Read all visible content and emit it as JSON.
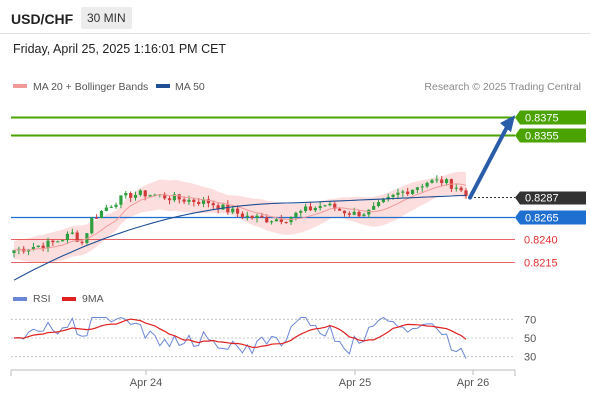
{
  "header": {
    "symbol": "USD/CHF",
    "interval": "30 MIN",
    "datetime": "Friday, April 25, 2025 1:16:01 PM CET"
  },
  "chart_data": {
    "type": "line",
    "legend": [
      {
        "name": "MA 20 + Bollinger Bands",
        "color": "#f29a9a"
      },
      {
        "name": "MA 50",
        "color": "#1f4f94"
      }
    ],
    "credit": "Research © 2025 Trading Central",
    "price_range": [
      0.8182,
      0.8413
    ],
    "current_price": "0.8287",
    "levels": [
      {
        "label": "0.8375",
        "value": 0.8375,
        "color": "#4aa300",
        "kind": "resistance"
      },
      {
        "label": "0.8355",
        "value": 0.8355,
        "color": "#4aa300",
        "kind": "resistance"
      },
      {
        "label": "0.8287",
        "value": 0.8287,
        "color": "#333333",
        "kind": "current"
      },
      {
        "label": "0.8265",
        "value": 0.8265,
        "color": "#1f6fd1",
        "kind": "pivot"
      },
      {
        "label": "0.8240",
        "value": 0.824,
        "color": "#e03030",
        "kind": "support"
      },
      {
        "label": "0.8215",
        "value": 0.8215,
        "color": "#e03030",
        "kind": "support"
      }
    ],
    "x_labels": [
      "Apr 24",
      "Apr 25",
      "Apr 26"
    ],
    "rsi": {
      "legend": [
        {
          "name": "RSI",
          "color": "#6b86d6"
        },
        {
          "name": "9MA",
          "color": "#e02020"
        }
      ],
      "ticks": [
        "70",
        "50",
        "30"
      ],
      "range": [
        20,
        80
      ]
    }
  }
}
